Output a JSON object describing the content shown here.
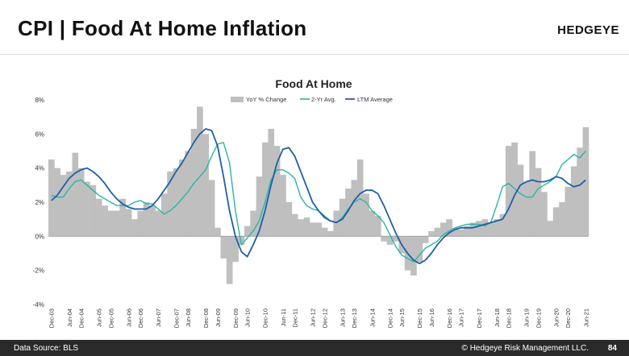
{
  "slide": {
    "title": "CPI | Food At Home Inflation",
    "logo": "HEDGEYE"
  },
  "footer": {
    "source": "Data Source: BLS",
    "copyright": "© Hedgeye Risk Management LLC.",
    "page": "84"
  },
  "colors": {
    "bars": "#bfbfbf",
    "avg2yr": "#2ab5a5",
    "ltm": "#1f5fa8"
  },
  "chart_data": {
    "type": "bar",
    "title": "Food At Home",
    "ylim": [
      -4,
      8
    ],
    "yticks": [
      "-4%",
      "-2%",
      "0%",
      "2%",
      "4%",
      "6%",
      "8%"
    ],
    "ytick_values": [
      -4,
      -2,
      0,
      2,
      4,
      6,
      8
    ],
    "legend": {
      "placement": "top",
      "entries": [
        "YoY % Change",
        "2-Yr Avg.",
        "LTM Average"
      ]
    },
    "grid": false,
    "x_labels": [
      "Dec-03",
      "Jun-04",
      "Dec-04",
      "Jun-05",
      "Dec-05",
      "Jun-06",
      "Dec-06",
      "Jun-07",
      "Dec-07",
      "Jun-08",
      "Dec-08",
      "Jun-09",
      "Dec-09",
      "Jun-10",
      "Dec-10",
      "Jun-11",
      "Dec-11",
      "Jun-12",
      "Dec-12",
      "Jun-13",
      "Dec-13",
      "Jun-14",
      "Dec-14",
      "Jun-15",
      "Dec-15",
      "Jun-16",
      "Dec-16",
      "Jun-17",
      "Dec-17",
      "Jun-18",
      "Dec-18",
      "Jun-19",
      "Dec-19",
      "Jun-20",
      "Dec-20",
      "Jun-21"
    ],
    "series": [
      {
        "name": "YoY % Change",
        "type": "bar",
        "values": [
          4.5,
          4.0,
          3.6,
          3.8,
          4.9,
          4.0,
          3.2,
          3.0,
          2.2,
          1.8,
          1.5,
          1.5,
          2.2,
          1.6,
          1.0,
          1.5,
          2.0,
          1.8,
          1.5,
          2.5,
          3.8,
          4.0,
          4.5,
          5.0,
          6.3,
          7.6,
          6.0,
          3.3,
          0.5,
          -1.3,
          -2.8,
          -1.5,
          -0.5,
          0.6,
          1.5,
          3.5,
          5.5,
          6.3,
          5.3,
          3.6,
          2.0,
          1.3,
          1.0,
          1.1,
          0.8,
          0.8,
          0.5,
          0.3,
          1.5,
          2.2,
          2.8,
          3.3,
          4.5,
          2.5,
          1.5,
          1.2,
          -0.3,
          -0.5,
          -0.3,
          -1.0,
          -2.0,
          -2.3,
          -1.5,
          -0.4,
          0.3,
          0.5,
          0.8,
          1.0,
          0.5,
          0.4,
          0.6,
          0.8,
          0.9,
          1.0,
          0.8,
          1.0,
          1.3,
          5.3,
          5.5,
          4.2,
          3.2,
          5.0,
          4.0,
          2.6,
          0.9,
          1.7,
          2.0,
          2.9,
          4.1,
          5.2,
          6.4
        ]
      },
      {
        "name": "2-Yr Avg.",
        "type": "line",
        "values": [
          2.4,
          2.3,
          2.3,
          2.8,
          3.2,
          3.3,
          3.0,
          2.7,
          2.4,
          2.2,
          2.0,
          1.8,
          1.8,
          1.8,
          2.0,
          2.1,
          1.9,
          1.9,
          1.6,
          1.3,
          1.5,
          1.8,
          2.2,
          2.6,
          3.1,
          3.5,
          3.9,
          4.7,
          5.4,
          5.5,
          4.3,
          1.5,
          -0.5,
          -0.1,
          0.3,
          0.9,
          2.0,
          3.3,
          3.9,
          3.9,
          3.7,
          3.4,
          2.3,
          1.8,
          1.6,
          1.5,
          1.2,
          0.9,
          0.8,
          1.1,
          1.6,
          2.0,
          2.2,
          2.0,
          1.5,
          1.2,
          0.8,
          0.1,
          -0.6,
          -1.1,
          -1.3,
          -1.5,
          -1.1,
          -0.7,
          -0.5,
          -0.3,
          0.1,
          0.3,
          0.5,
          0.6,
          0.7,
          0.7,
          0.7,
          0.6,
          0.8,
          1.8,
          2.9,
          3.1,
          2.8,
          2.5,
          2.3,
          2.3,
          2.8,
          3.0,
          3.2,
          3.5,
          4.2,
          4.5,
          4.8,
          4.6,
          5.0
        ]
      },
      {
        "name": "LTM Average",
        "type": "line",
        "values": [
          2.1,
          2.4,
          2.9,
          3.4,
          3.7,
          3.9,
          4.0,
          3.8,
          3.5,
          3.1,
          2.6,
          2.2,
          1.9,
          1.7,
          1.6,
          1.6,
          1.6,
          1.8,
          2.2,
          2.7,
          3.2,
          3.8,
          4.3,
          4.9,
          5.5,
          6.0,
          6.3,
          6.2,
          5.3,
          3.5,
          1.5,
          0.0,
          -0.9,
          -1.2,
          -0.5,
          0.3,
          1.5,
          3.0,
          4.3,
          5.1,
          5.2,
          4.7,
          3.8,
          2.9,
          2.0,
          1.5,
          1.1,
          0.9,
          0.8,
          1.0,
          1.5,
          2.1,
          2.5,
          2.7,
          2.7,
          2.5,
          1.8,
          1.0,
          0.2,
          -0.5,
          -1.0,
          -1.4,
          -1.6,
          -1.4,
          -1.0,
          -0.5,
          -0.1,
          0.2,
          0.4,
          0.5,
          0.5,
          0.5,
          0.6,
          0.7,
          0.8,
          0.9,
          1.0,
          1.6,
          2.4,
          3.0,
          3.2,
          3.3,
          3.2,
          3.2,
          3.3,
          3.5,
          3.4,
          3.1,
          2.9,
          3.0,
          3.3
        ]
      }
    ]
  }
}
